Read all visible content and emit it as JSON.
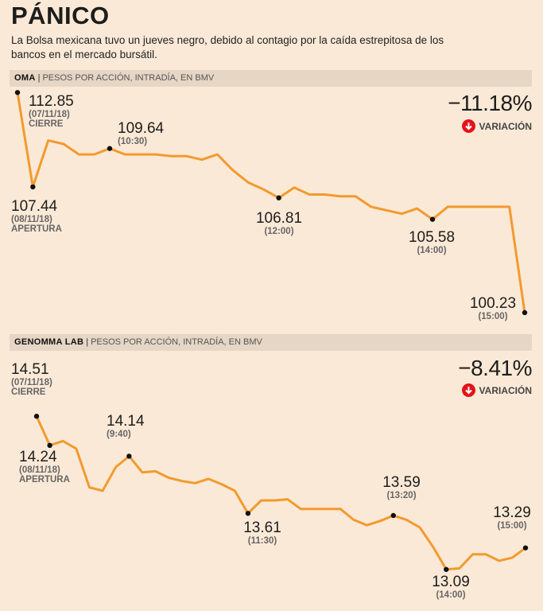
{
  "header": {
    "title": "PÁNICO",
    "subtitle": "La Bolsa mexicana tuvo un jueves negro, debido al contagio por la caída estrepitosa de los bancos en el mercado bursátil."
  },
  "colors": {
    "line": "#f29a2e",
    "background": "#fbe9d7",
    "band": "#e6d6c5",
    "down": "#e3131b"
  },
  "chart_data": [
    {
      "type": "line",
      "ticker": "OMA",
      "description": "PESOS POR ACCIÓN, INTRADÍA, EN BMV",
      "change": "−11.18%",
      "change_label": "VARIACIÓN",
      "ylim": [
        100.0,
        113.0
      ],
      "values": [
        112.85,
        107.44,
        110.1,
        109.9,
        109.3,
        109.3,
        109.64,
        109.3,
        109.3,
        109.3,
        109.2,
        109.2,
        109.0,
        109.3,
        108.4,
        107.7,
        107.3,
        106.81,
        107.4,
        107.0,
        107.0,
        106.9,
        106.9,
        106.3,
        106.1,
        105.9,
        106.2,
        105.58,
        106.3,
        106.3,
        106.3,
        106.3,
        106.3,
        100.23
      ],
      "annotations": [
        {
          "index": 0,
          "value": "112.85",
          "date": "(07/11/18)",
          "tag": "CIERRE"
        },
        {
          "index": 1,
          "value": "107.44",
          "date": "(08/11/18)",
          "tag": "APERTURA"
        },
        {
          "index": 6,
          "value": "109.64",
          "time": "(10:30)"
        },
        {
          "index": 17,
          "value": "106.81",
          "time": "(12:00)"
        },
        {
          "index": 27,
          "value": "105.58",
          "time": "(14:00)"
        },
        {
          "index": 33,
          "value": "100.23",
          "time": "(15:00)"
        }
      ]
    },
    {
      "type": "line",
      "ticker": "GENOMMA LAB",
      "description": "PESOS POR ACCIÓN, INTRADÍA, EN BMV",
      "change": "−8.41%",
      "change_label": "VARIACIÓN",
      "ylim": [
        13.0,
        14.6
      ],
      "values": [
        14.51,
        14.24,
        14.28,
        14.21,
        13.85,
        13.82,
        14.04,
        14.14,
        13.99,
        14.0,
        13.94,
        13.91,
        13.89,
        13.93,
        13.88,
        13.82,
        13.61,
        13.73,
        13.73,
        13.74,
        13.65,
        13.65,
        13.65,
        13.65,
        13.55,
        13.5,
        13.54,
        13.59,
        13.55,
        13.48,
        13.3,
        13.09,
        13.1,
        13.23,
        13.23,
        13.17,
        13.2,
        13.29
      ],
      "annotations": [
        {
          "index": 0,
          "value": "14.51",
          "date": "(07/11/18)",
          "tag": "CIERRE"
        },
        {
          "index": 1,
          "value": "14.24",
          "date": "(08/11/18)",
          "tag": "APERTURA"
        },
        {
          "index": 7,
          "value": "14.14",
          "time": "(9:40)"
        },
        {
          "index": 16,
          "value": "13.61",
          "time": "(11:30)"
        },
        {
          "index": 27,
          "value": "13.59",
          "time": "(13:20)"
        },
        {
          "index": 31,
          "value": "13.09",
          "time": "(14:00)"
        },
        {
          "index": 37,
          "value": "13.29",
          "time": "(15:00)"
        }
      ]
    }
  ]
}
